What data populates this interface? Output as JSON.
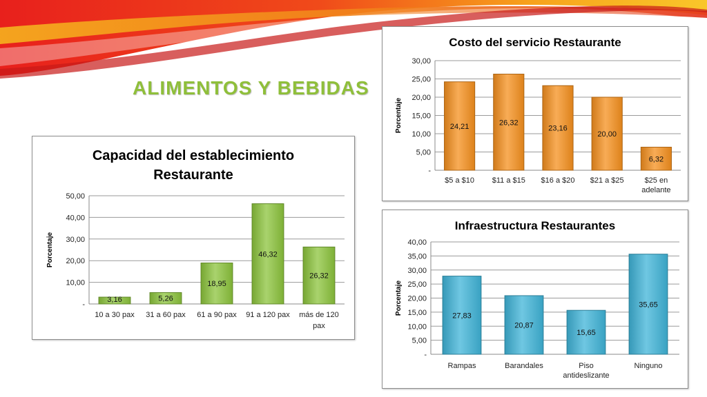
{
  "slide": {
    "title": "ALIMENTOS Y BEBIDAS"
  },
  "colors": {
    "title": "#8fbf3a",
    "green_bar": "#8cc43c",
    "orange_bar": "#f5901e",
    "blue_bar": "#3fb4d8"
  },
  "chart_data": [
    {
      "id": "capacidad",
      "type": "bar",
      "title": "Capacidad del establecimiento Restaurante",
      "title_lines": [
        "Capacidad del establecimiento",
        "Restaurante"
      ],
      "ylabel": "Porcentaje",
      "categories": [
        [
          "10 a 30 pax"
        ],
        [
          "31 a 60 pax"
        ],
        [
          "61 a 90 pax"
        ],
        [
          "91 a 120 pax"
        ],
        [
          "más de 120",
          "pax"
        ]
      ],
      "values": [
        3.16,
        5.26,
        18.95,
        46.32,
        26.32
      ],
      "value_labels": [
        "3,16",
        "5,26",
        "18,95",
        "46,32",
        "26,32"
      ],
      "ylim": [
        0,
        50
      ],
      "yticks": [
        "-",
        "10,00",
        "20,00",
        "30,00",
        "40,00",
        "50,00"
      ],
      "grid": true,
      "color": "#8cc43c"
    },
    {
      "id": "costo",
      "type": "bar",
      "title": "Costo del servicio Restaurante",
      "title_lines": [
        "Costo del servicio Restaurante"
      ],
      "ylabel": "Porcentaje",
      "categories": [
        [
          "$5 a $10"
        ],
        [
          "$11 a $15"
        ],
        [
          "$16 a $20"
        ],
        [
          "$21 a $25"
        ],
        [
          "$25 en",
          "adelante"
        ]
      ],
      "values": [
        24.21,
        26.32,
        23.16,
        20.0,
        6.32
      ],
      "value_labels": [
        "24,21",
        "26,32",
        "23,16",
        "20,00",
        "6,32"
      ],
      "ylim": [
        0,
        30
      ],
      "yticks": [
        "-",
        "5,00",
        "10,00",
        "15,00",
        "20,00",
        "25,00",
        "30,00"
      ],
      "grid": true,
      "color": "#f5901e"
    },
    {
      "id": "infraestructura",
      "type": "bar",
      "title": "Infraestructura Restaurantes",
      "title_lines": [
        "Infraestructura Restaurantes"
      ],
      "ylabel": "Porcentaje",
      "categories": [
        [
          "Rampas"
        ],
        [
          "Barandales"
        ],
        [
          "Piso",
          "antideslizante"
        ],
        [
          "Ninguno"
        ]
      ],
      "values": [
        27.83,
        20.87,
        15.65,
        35.65
      ],
      "value_labels": [
        "27,83",
        "20,87",
        "15,65",
        "35,65"
      ],
      "ylim": [
        0,
        40
      ],
      "yticks": [
        "-",
        "5,00",
        "10,00",
        "15,00",
        "20,00",
        "25,00",
        "30,00",
        "35,00",
        "40,00"
      ],
      "grid": true,
      "color": "#3fb4d8"
    }
  ]
}
